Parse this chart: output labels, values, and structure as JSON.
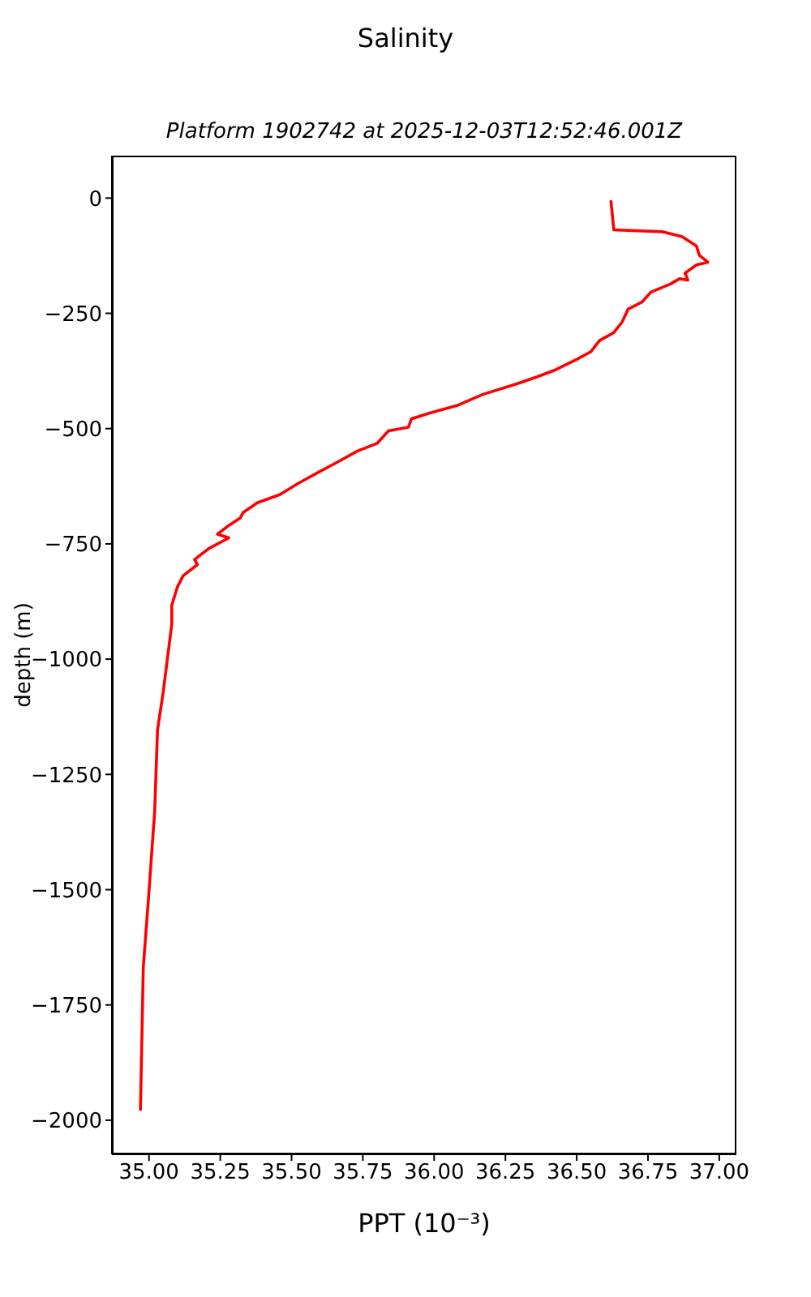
{
  "chart_data": {
    "type": "line",
    "title": "Salinity",
    "subtitle": "Platform 1902742 at 2025-12-03T12:52:46.001Z",
    "xlabel": "PPT (10⁻³)",
    "ylabel": "depth (m)",
    "xlim": [
      34.87,
      37.06
    ],
    "ylim": [
      -2074,
      92
    ],
    "xticks": [
      {
        "value": 35,
        "label": "35.00"
      },
      {
        "value": 35.25,
        "label": "35.25"
      },
      {
        "value": 35.5,
        "label": "35.50"
      },
      {
        "value": 35.75,
        "label": "35.75"
      },
      {
        "value": 36,
        "label": "36.00"
      },
      {
        "value": 36.25,
        "label": "36.25"
      },
      {
        "value": 36.5,
        "label": "36.50"
      },
      {
        "value": 36.75,
        "label": "36.75"
      },
      {
        "value": 37,
        "label": "37.00"
      }
    ],
    "yticks": [
      0,
      -250,
      -500,
      -750,
      -1000,
      -1250,
      -1500,
      -1750,
      -2000
    ],
    "grid": false,
    "legend": false,
    "marker": "none",
    "line_style": "solid",
    "series": [
      {
        "color": "#ff0000",
        "x": [
          36.62,
          36.63,
          36.8,
          36.87,
          36.92,
          36.93,
          36.96,
          36.92,
          36.88,
          36.89,
          36.86,
          36.83,
          36.76,
          36.73,
          36.68,
          36.66,
          36.63,
          36.58,
          36.55,
          36.5,
          36.42,
          36.36,
          36.29,
          36.17,
          36.08,
          35.98,
          35.92,
          35.91,
          35.84,
          35.8,
          35.73,
          35.66,
          35.59,
          35.52,
          35.46,
          35.38,
          35.33,
          35.32,
          35.28,
          35.24,
          35.28,
          35.21,
          35.16,
          35.17,
          35.12,
          35.1,
          35.08,
          35.08,
          35.08,
          35.05,
          35.03,
          35.02,
          35.0,
          34.98,
          34.97
        ],
        "values": [
          -5,
          -69,
          -73,
          -84,
          -104,
          -124,
          -139,
          -145,
          -163,
          -178,
          -175,
          -186,
          -204,
          -225,
          -241,
          -268,
          -292,
          -309,
          -333,
          -350,
          -374,
          -388,
          -403,
          -426,
          -450,
          -467,
          -479,
          -497,
          -505,
          -532,
          -549,
          -573,
          -596,
          -620,
          -643,
          -661,
          -682,
          -694,
          -710,
          -729,
          -737,
          -760,
          -784,
          -795,
          -819,
          -843,
          -883,
          -895,
          -924,
          -1071,
          -1153,
          -1329,
          -1504,
          -1669,
          -1979
        ]
      }
    ]
  }
}
